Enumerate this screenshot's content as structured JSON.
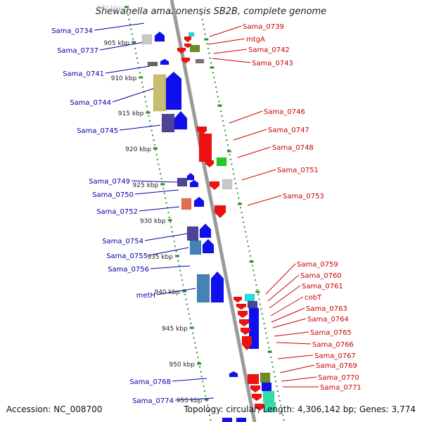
{
  "title": "Shewanella amazonensis SB2B, complete genome",
  "accession": "Accession: NC_008700",
  "summary": "Topology: circular; Length: 4,306,142 bp; Genes: 3,774",
  "colors": {
    "left_label": "#0000aa",
    "right_label": "#cc0000",
    "backbone": "#9a9a9a",
    "tick": "#2f8f2f"
  },
  "scale_ticks": [
    "900 kbp",
    "905 kbp",
    "910 kbp",
    "915 kbp",
    "920 kbp",
    "925 kbp",
    "930 kbp",
    "935 kbp",
    "940 kbp",
    "945 kbp",
    "950 kbp",
    "955 kbp"
  ],
  "left_genes": [
    "Sama_0734",
    "Sama_0737",
    "Sama_0741",
    "Sama_0744",
    "Sama_0745",
    "Sama_0749",
    "Sama_0750",
    "Sama_0752",
    "Sama_0754",
    "Sama_0755",
    "Sama_0756",
    "metH",
    "Sama_0768",
    "Sama_0774"
  ],
  "right_genes": [
    "Sama_0739",
    "mtgA",
    "Sama_0742",
    "Sama_0743",
    "Sama_0746",
    "Sama_0747",
    "Sama_0748",
    "Sama_0751",
    "Sama_0753",
    "Sama_0759",
    "Sama_0760",
    "Sama_0761",
    "cobT",
    "Sama_0763",
    "Sama_0764",
    "Sama_0765",
    "Sama_0766",
    "Sama_0767",
    "Sama_0769",
    "Sama_0770",
    "Sama_0771"
  ]
}
